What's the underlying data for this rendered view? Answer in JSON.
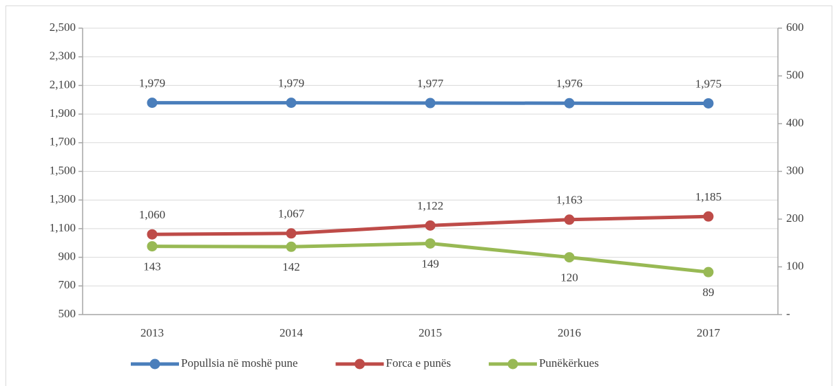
{
  "chart_data": {
    "type": "line",
    "categories": [
      "2013",
      "2014",
      "2015",
      "2016",
      "2017"
    ],
    "series": [
      {
        "name": "Popullsia në moshë pune",
        "color": "#4a7ebb",
        "axis": "y",
        "values": [
          1979,
          1979,
          1977,
          1976,
          1975
        ],
        "value_labels": [
          "1,979",
          "1,979",
          "1,977",
          "1,976",
          "1,975"
        ]
      },
      {
        "name": "Forca e punës",
        "color": "#be4b48",
        "axis": "y",
        "values": [
          1060,
          1067,
          1122,
          1163,
          1185
        ],
        "value_labels": [
          "1,060",
          "1,067",
          "1,122",
          "1,163",
          "1,185"
        ]
      },
      {
        "name": "Punëkërkues",
        "color": "#98b954",
        "axis": "y2",
        "values": [
          143,
          142,
          149,
          120,
          89
        ]
      }
    ],
    "ylim": [
      500,
      2500
    ],
    "yticks": [
      500,
      700,
      900,
      {
        "value": 1100,
        "label": "1,100"
      },
      {
        "value": 1300,
        "label": "1,300"
      },
      {
        "value": 1500,
        "label": "1,500"
      },
      {
        "value": 1700,
        "label": "1,700"
      },
      {
        "value": 1900,
        "label": "1,900"
      },
      {
        "value": 2100,
        "label": "2,100"
      },
      {
        "value": 2300,
        "label": "2,300"
      },
      {
        "value": 2500,
        "label": "2,500"
      }
    ],
    "y2lim": [
      0,
      600
    ],
    "y2ticks": [
      {
        "value": 0,
        "label": "-"
      },
      100,
      200,
      300,
      400,
      500,
      600
    ],
    "grid": true,
    "legend": "bottom"
  }
}
